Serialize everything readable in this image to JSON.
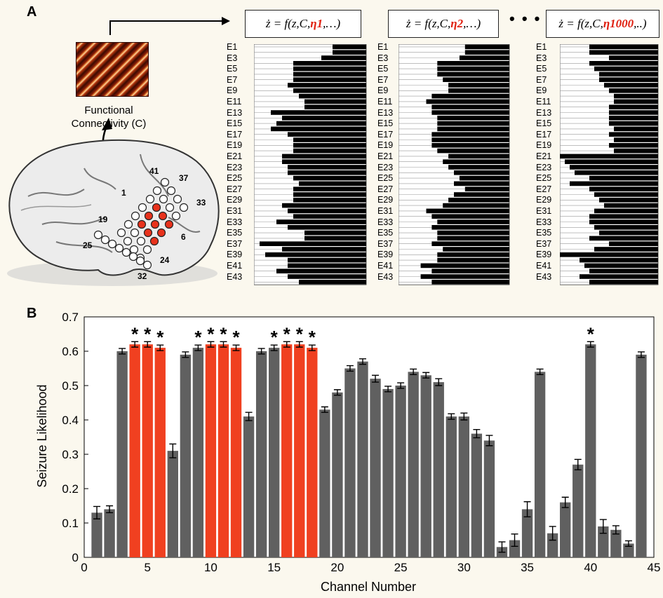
{
  "panel_a": {
    "label": "A",
    "fc_label_line1": "Functional",
    "fc_label_line2": "Connectivity (C)",
    "equations": [
      {
        "prefix": "ż = f(z,C,",
        "eta": "η1",
        "suffix": ",…)"
      },
      {
        "prefix": "ż = f(z,C,",
        "eta": "η2",
        "suffix": ",…)"
      },
      {
        "prefix": "ż = f(z,C,",
        "eta": "η1000",
        "suffix": ",..)"
      }
    ],
    "ellipsis": "• • •",
    "electrode_labels": [
      "E1",
      "E3",
      "E5",
      "E7",
      "E9",
      "E11",
      "E13",
      "E15",
      "E17",
      "E19",
      "E21",
      "E23",
      "E25",
      "E27",
      "E29",
      "E31",
      "E33",
      "E35",
      "E37",
      "E39",
      "E41",
      "E43"
    ],
    "grid_numbers": [
      "41",
      "37",
      "33",
      "1",
      "19",
      "6",
      "25",
      "24",
      "32"
    ],
    "colors": {
      "seizure_electrode": "#e8321c",
      "electrode": "#ffffff"
    }
  },
  "panel_b": {
    "label": "B",
    "colors": {
      "gray_bar": "#606060",
      "highlight_bar": "#f04020"
    }
  },
  "chart_data": {
    "type": "bar",
    "xlabel": "Channel Number",
    "ylabel": "Seizure Likelihood",
    "xlim": [
      0,
      45
    ],
    "ylim": [
      0,
      0.7
    ],
    "x_ticks": [
      0,
      5,
      10,
      15,
      20,
      25,
      30,
      35,
      40,
      45
    ],
    "y_ticks": [
      0,
      0.1,
      0.2,
      0.3,
      0.4,
      0.5,
      0.6,
      0.7
    ],
    "channels": [
      1,
      2,
      3,
      4,
      5,
      6,
      7,
      8,
      9,
      10,
      11,
      12,
      13,
      14,
      15,
      16,
      17,
      18,
      19,
      20,
      21,
      22,
      23,
      24,
      25,
      26,
      27,
      28,
      29,
      30,
      31,
      32,
      33,
      34,
      35,
      36,
      37,
      38,
      39,
      40,
      41,
      42,
      43,
      44
    ],
    "values": [
      0.13,
      0.14,
      0.6,
      0.62,
      0.62,
      0.61,
      0.31,
      0.59,
      0.61,
      0.62,
      0.62,
      0.61,
      0.41,
      0.6,
      0.61,
      0.62,
      0.62,
      0.61,
      0.43,
      0.48,
      0.55,
      0.57,
      0.52,
      0.49,
      0.5,
      0.54,
      0.53,
      0.51,
      0.41,
      0.41,
      0.36,
      0.34,
      0.03,
      0.05,
      0.14,
      0.54,
      0.07,
      0.16,
      0.27,
      0.62,
      0.09,
      0.08,
      0.04,
      0.59
    ],
    "errors": [
      0.018,
      0.01,
      0.008,
      0.008,
      0.008,
      0.008,
      0.02,
      0.008,
      0.008,
      0.008,
      0.008,
      0.008,
      0.012,
      0.008,
      0.008,
      0.008,
      0.008,
      0.008,
      0.008,
      0.008,
      0.008,
      0.008,
      0.01,
      0.008,
      0.008,
      0.008,
      0.008,
      0.01,
      0.008,
      0.01,
      0.012,
      0.015,
      0.015,
      0.018,
      0.022,
      0.008,
      0.02,
      0.015,
      0.015,
      0.008,
      0.02,
      0.012,
      0.008,
      0.008
    ],
    "highlighted_channels": [
      4,
      5,
      6,
      10,
      11,
      12,
      16,
      17,
      18
    ],
    "starred_channels": [
      4,
      5,
      6,
      9,
      10,
      11,
      12,
      15,
      16,
      17,
      18,
      40
    ],
    "star_symbol": "*"
  }
}
